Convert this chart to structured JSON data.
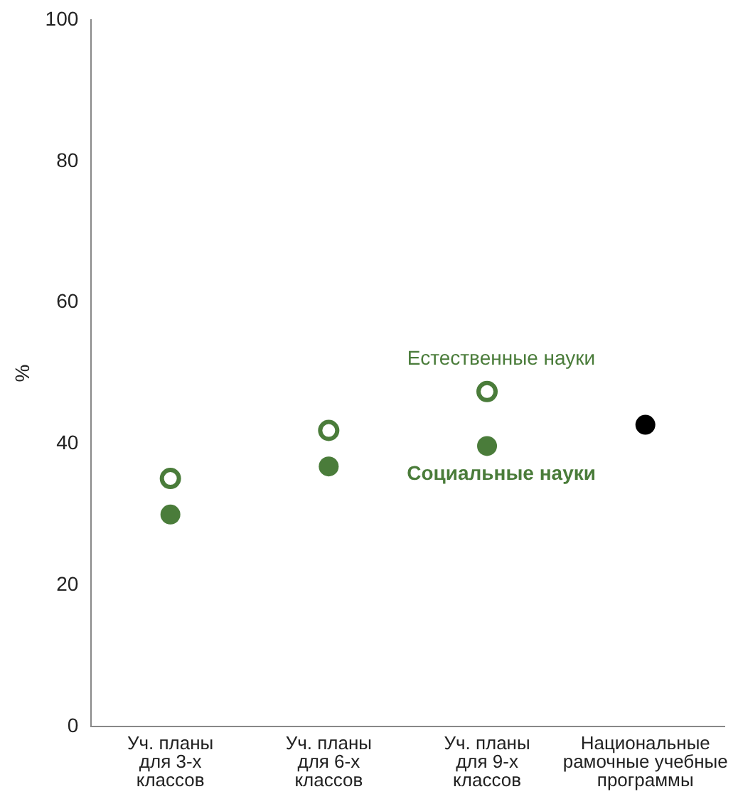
{
  "chart_data": {
    "type": "scatter",
    "ylabel": "%",
    "categories": [
      "Уч. планы\nдля 3-х\nклассов",
      "Уч. планы\nдля 6-х\nклассов",
      "Уч. планы\nдля 9-х\nклассов",
      "Национальные\nрамочные учебные\nпрограммы"
    ],
    "series": [
      {
        "name": "Естественные науки",
        "color": "#4a7c3a",
        "marker": "circle",
        "values": [
          35.1,
          41.9,
          47.4,
          null
        ]
      },
      {
        "name": "Социальные науки",
        "color": "#4a7c3a",
        "values": [
          30.0,
          36.8,
          39.7,
          null
        ]
      },
      {
        "color": "#000000",
        "values": [
          null,
          null,
          null,
          42.7
        ]
      }
    ],
    "ylim": [
      0,
      100
    ],
    "yticks": [
      0,
      20,
      40,
      60,
      80,
      100
    ],
    "grid": false,
    "legend": false
  }
}
